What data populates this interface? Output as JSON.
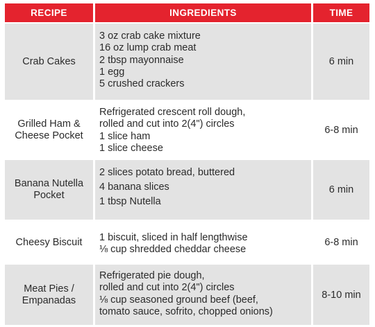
{
  "header": {
    "recipe": "RECIPE",
    "ingredients": "INGREDIENTS",
    "time": "TIME"
  },
  "rows": [
    {
      "recipe": [
        "Crab Cakes"
      ],
      "ingredients": [
        "3 oz crab cake mixture",
        "16 oz lump crab meat",
        "2 tbsp mayonnaise",
        "1 egg",
        "5 crushed crackers"
      ],
      "time": "6 min"
    },
    {
      "recipe": [
        "Grilled Ham &",
        "Cheese Pocket"
      ],
      "ingredients": [
        "Refrigerated crescent roll dough,",
        "rolled and cut into 2(4\") circles",
        "1 slice ham",
        "1 slice cheese"
      ],
      "time": "6-8 min"
    },
    {
      "recipe": [
        "Banana Nutella",
        "Pocket"
      ],
      "ingredients": [
        "2 slices potato bread, buttered",
        "4 banana slices",
        "1 tbsp Nutella"
      ],
      "time": "6 min"
    },
    {
      "recipe": [
        "Cheesy Biscuit"
      ],
      "ingredients": [
        "1 biscuit, sliced in half lengthwise",
        "⅛ cup shredded cheddar cheese"
      ],
      "time": "6-8 min"
    },
    {
      "recipe": [
        "Meat Pies /",
        "Empanadas"
      ],
      "ingredients": [
        "Refrigerated pie dough,",
        "rolled and cut into 2(4\") circles",
        "⅛ cup seasoned ground beef (beef,",
        "tomato sauce, sofrito, chopped onions)"
      ],
      "time": "8-10 min"
    }
  ]
}
